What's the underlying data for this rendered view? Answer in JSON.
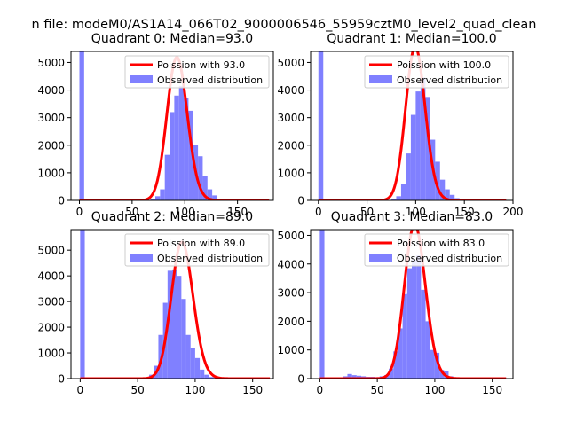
{
  "suptitle": "n file: modeM0/AS1A14_066T02_9000006546_55959cztM0_level2_quad_clean",
  "colors": {
    "poisson": "#ff0000",
    "hist": "#8080ff",
    "axis": "#000000"
  },
  "chart_data": [
    {
      "type": "bar",
      "title": "Quadrant 0: Median=93.0",
      "legend": [
        "Poission with 93.0",
        "Observed distribution"
      ],
      "legend_position": "top-right",
      "xlim": [
        -8,
        184
      ],
      "ylim": [
        0,
        5400
      ],
      "xticks": [
        0,
        50,
        100,
        150
      ],
      "yticks": [
        0,
        1000,
        2000,
        3000,
        4000,
        5000
      ],
      "mean": 93,
      "bin_start": 0,
      "bin_width": 4.5,
      "values": [
        5400,
        0,
        0,
        0,
        0,
        0,
        0,
        0,
        0,
        0,
        0,
        0,
        0,
        0,
        20,
        60,
        150,
        400,
        1650,
        3200,
        3800,
        4150,
        3700,
        3250,
        2000,
        1600,
        900,
        400,
        180,
        60,
        25,
        10,
        5,
        0,
        0,
        0,
        0,
        0,
        0
      ],
      "curve_xmax": 180
    },
    {
      "type": "bar",
      "title": "Quadrant 1: Median=100.0",
      "legend": [
        "Poission with 100.0",
        "Observed distribution"
      ],
      "legend_position": "top-right",
      "xlim": [
        -8,
        200
      ],
      "ylim": [
        0,
        5400
      ],
      "xticks": [
        0,
        50,
        100,
        150,
        200
      ],
      "yticks": [
        0,
        1000,
        2000,
        3000,
        4000,
        5000
      ],
      "mean": 100,
      "bin_start": 0,
      "bin_width": 5,
      "values": [
        5400,
        0,
        0,
        0,
        0,
        0,
        0,
        0,
        0,
        0,
        0,
        0,
        0,
        0,
        0,
        50,
        150,
        600,
        1700,
        3100,
        3950,
        4450,
        3750,
        2200,
        1400,
        750,
        400,
        200,
        80,
        30,
        10,
        5,
        0,
        0,
        0,
        0,
        0,
        0,
        0
      ],
      "curve_xmax": 193
    },
    {
      "type": "bar",
      "title": "Quadrant 2: Median=89.0",
      "legend": [
        "Poission with 89.0",
        "Observed distribution"
      ],
      "legend_position": "top-right",
      "xlim": [
        -8,
        168
      ],
      "ylim": [
        0,
        5800
      ],
      "xticks": [
        0,
        50,
        100,
        150
      ],
      "yticks": [
        0,
        1000,
        2000,
        3000,
        4000,
        5000
      ],
      "mean": 89,
      "bin_start": 0,
      "bin_width": 4,
      "values": [
        5800,
        0,
        0,
        0,
        0,
        0,
        0,
        0,
        0,
        0,
        0,
        0,
        0,
        0,
        40,
        150,
        500,
        1700,
        2950,
        4200,
        4250,
        4000,
        3100,
        1700,
        1200,
        800,
        350,
        150,
        60,
        30,
        10,
        5,
        0,
        0,
        0,
        0,
        0,
        0,
        0,
        0,
        0
      ],
      "curve_xmax": 165
    },
    {
      "type": "bar",
      "title": "Quadrant 3: Median=83.0",
      "legend": [
        "Poission with 83.0",
        "Observed distribution"
      ],
      "legend_position": "top-right",
      "xlim": [
        -8,
        168
      ],
      "ylim": [
        0,
        5200
      ],
      "xticks": [
        0,
        50,
        100,
        150
      ],
      "yticks": [
        0,
        1000,
        2000,
        3000,
        4000,
        5000
      ],
      "mean": 83,
      "bin_start": 0,
      "bin_width": 4,
      "values": [
        5200,
        0,
        0,
        0,
        40,
        80,
        160,
        120,
        100,
        80,
        60,
        60,
        50,
        80,
        120,
        350,
        950,
        1750,
        2950,
        3850,
        4150,
        4300,
        3100,
        2000,
        1000,
        900,
        300,
        250,
        80,
        30,
        10,
        5,
        0,
        0,
        0,
        0,
        0,
        0,
        0,
        0,
        0
      ],
      "curve_xmax": 162
    }
  ]
}
